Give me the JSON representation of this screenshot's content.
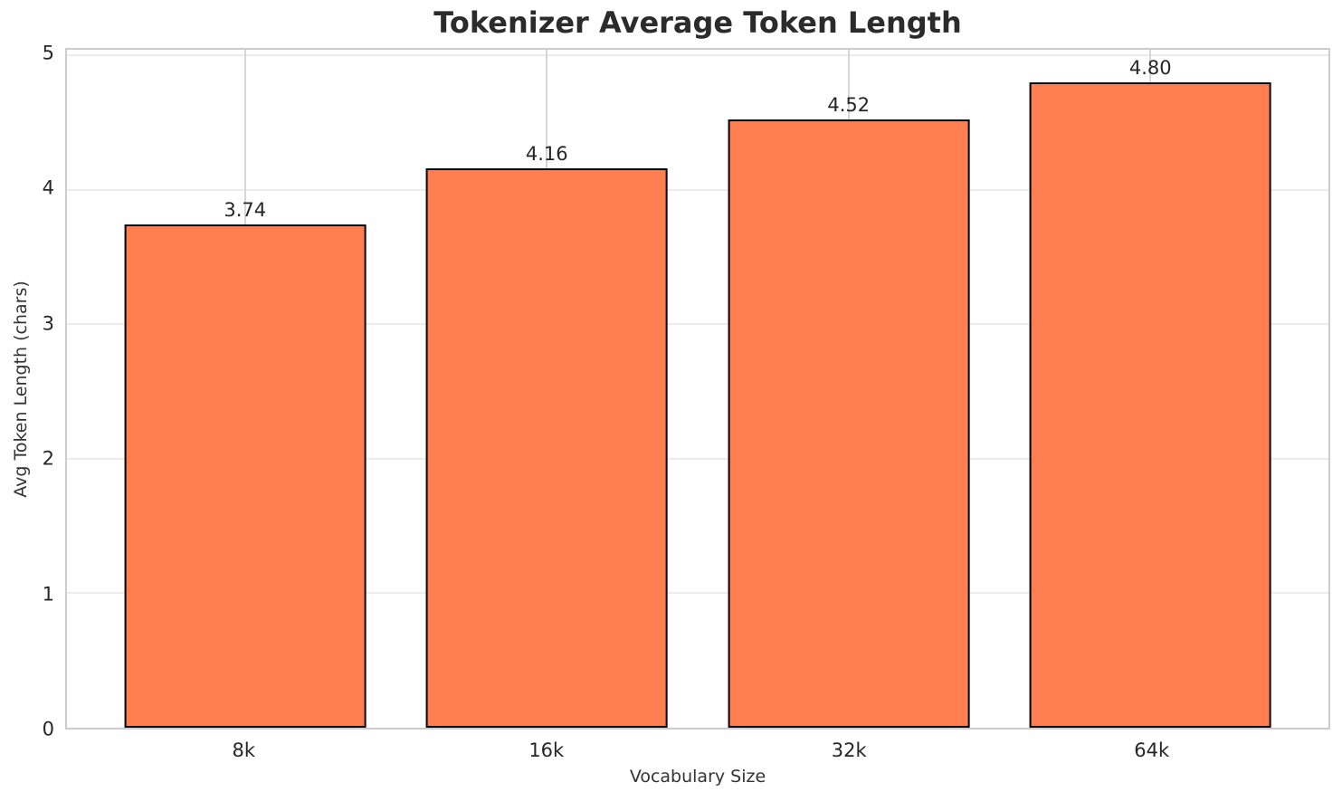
{
  "chart_data": {
    "type": "bar",
    "title": "Tokenizer Average Token Length",
    "xlabel": "Vocabulary Size",
    "ylabel": "Avg Token Length (chars)",
    "categories": [
      "8k",
      "16k",
      "32k",
      "64k"
    ],
    "values": [
      3.74,
      4.16,
      4.52,
      4.8
    ],
    "value_labels": [
      "3.74",
      "4.16",
      "4.52",
      "4.80"
    ],
    "yticks": [
      0,
      1,
      2,
      3,
      4,
      5
    ],
    "ytick_labels": [
      "0",
      "1",
      "2",
      "3",
      "4",
      "5"
    ],
    "ylim": [
      0,
      5.04
    ],
    "xlim": [
      -0.59,
      3.59
    ],
    "bar_width_units": 0.8,
    "grid": true,
    "legend": null,
    "colors": {
      "bar_fill": "#ff7f50",
      "bar_edge": "#000000",
      "grid_horizontal": "#ececec",
      "grid_vertical": "#d6d6d6",
      "spine": "#cccccc",
      "title_text": "#2b2b2b",
      "tick_text": "#262626",
      "axis_label_text": "#333333",
      "background": "#ffffff"
    }
  }
}
